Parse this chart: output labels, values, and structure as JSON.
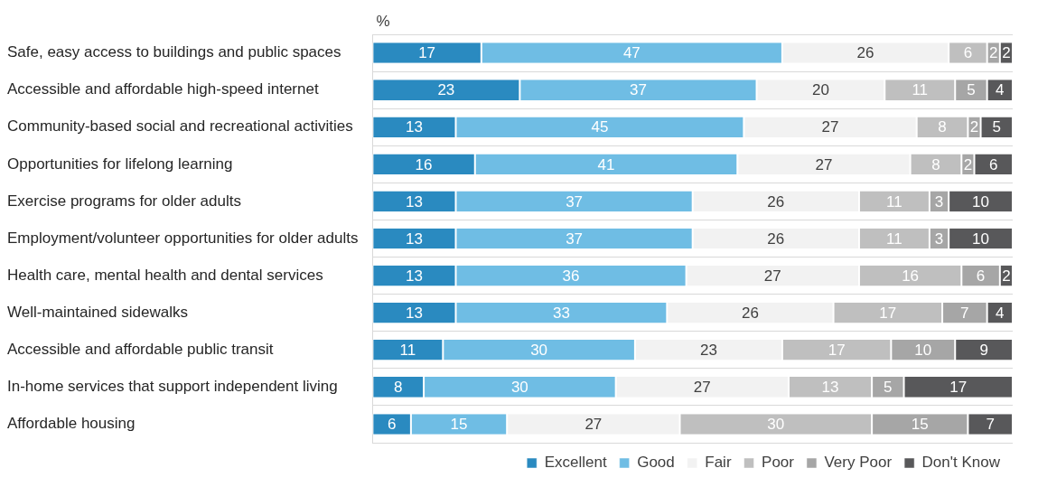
{
  "chart_data": {
    "type": "bar",
    "orientation": "horizontal",
    "stacked": true,
    "title": "%",
    "data_labels": true,
    "grid": "y",
    "legend": "bottom right",
    "categories": [
      "Safe, easy access to buildings and public spaces",
      "Accessible and affordable high-speed internet",
      "Community-based social and recreational activities",
      "Opportunities for lifelong learning",
      "Exercise programs for older adults",
      "Employment/volunteer opportunities for older adults",
      "Health care, mental health and dental services",
      "Well-maintained sidewalks",
      "Accessible and affordable public transit",
      "In-home services that support independent living",
      "Affordable housing"
    ],
    "series": [
      {
        "name": "Excellent",
        "color": "#2a8ac0",
        "values": [
          17,
          23,
          13,
          16,
          13,
          13,
          13,
          13,
          11,
          8,
          6
        ]
      },
      {
        "name": "Good",
        "color": "#6fbde4",
        "values": [
          47,
          37,
          45,
          41,
          37,
          37,
          36,
          33,
          30,
          30,
          15
        ]
      },
      {
        "name": "Fair",
        "color": "#f2f2f2",
        "values": [
          26,
          20,
          27,
          27,
          26,
          26,
          27,
          26,
          23,
          27,
          27
        ]
      },
      {
        "name": "Poor",
        "color": "#bfbfbf",
        "values": [
          6,
          11,
          8,
          8,
          11,
          11,
          16,
          17,
          17,
          13,
          30
        ]
      },
      {
        "name": "Very Poor",
        "color": "#a6a6a6",
        "values": [
          2,
          5,
          2,
          2,
          3,
          3,
          6,
          7,
          10,
          5,
          15
        ]
      },
      {
        "name": "Don't Know",
        "color": "#58585a",
        "values": [
          2,
          4,
          5,
          6,
          10,
          10,
          2,
          4,
          9,
          17,
          7
        ]
      }
    ]
  }
}
